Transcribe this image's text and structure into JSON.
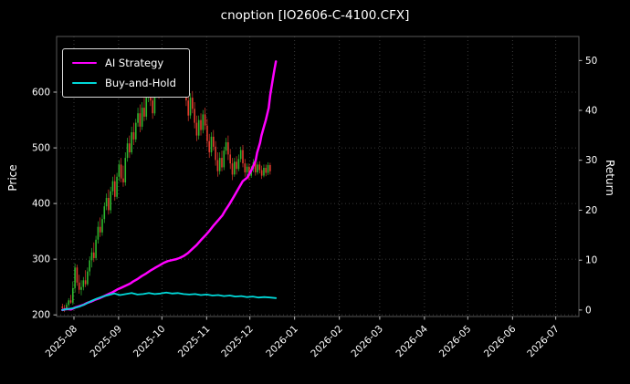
{
  "title": "cnoption [IO2606-C-4100.CFX]",
  "chart_data": {
    "type": "candlestick+line",
    "title": "cnoption [IO2606-C-4100.CFX]",
    "background": "#000000",
    "text_color": "#ffffff",
    "grid": {
      "on": true,
      "color": "#4a4a4a",
      "style": "dotted"
    },
    "legend_position": "upper-left",
    "x_axis": {
      "domain_days": [
        -4,
        358
      ],
      "tick_days": [
        8,
        39,
        69,
        100,
        130,
        161,
        192,
        220,
        251,
        281,
        312,
        342
      ],
      "tick_labels": [
        "2025-08",
        "2025-09",
        "2025-10",
        "2025-11",
        "2025-12",
        "2026-01",
        "2026-02",
        "2026-03",
        "2026-04",
        "2026-05",
        "2026-06",
        "2026-07"
      ]
    },
    "price_axis": {
      "label": "Price",
      "min": 197,
      "max": 700,
      "ticks": [
        200,
        300,
        400,
        500,
        600
      ]
    },
    "return_axis": {
      "label": "Return",
      "min": -1.3,
      "max": 54.8,
      "ticks": [
        0,
        10,
        20,
        30,
        40,
        50
      ]
    },
    "candles": {
      "start_day": 0,
      "end_day": 144,
      "up_color": "#2eb82e",
      "down_color": "#e23b2e",
      "ohlc": [
        [
          215,
          220,
          207,
          212
        ],
        [
          212,
          218,
          205,
          210
        ],
        [
          210,
          222,
          208,
          218
        ],
        [
          218,
          230,
          214,
          226
        ],
        [
          226,
          236,
          220,
          222
        ],
        [
          222,
          260,
          218,
          248
        ],
        [
          248,
          292,
          240,
          285
        ],
        [
          285,
          290,
          252,
          258
        ],
        [
          258,
          272,
          238,
          245
        ],
        [
          245,
          262,
          235,
          250
        ],
        [
          250,
          268,
          244,
          262
        ],
        [
          262,
          280,
          250,
          255
        ],
        [
          255,
          285,
          252,
          278
        ],
        [
          278,
          305,
          270,
          298
        ],
        [
          298,
          320,
          285,
          312
        ],
        [
          312,
          330,
          295,
          302
        ],
        [
          302,
          342,
          298,
          335
        ],
        [
          335,
          368,
          328,
          358
        ],
        [
          358,
          375,
          340,
          348
        ],
        [
          348,
          380,
          342,
          372
        ],
        [
          372,
          402,
          365,
          395
        ],
        [
          395,
          418,
          388,
          410
        ],
        [
          410,
          425,
          380,
          388
        ],
        [
          388,
          430,
          382,
          422
        ],
        [
          422,
          448,
          415,
          440
        ],
        [
          440,
          452,
          405,
          412
        ],
        [
          412,
          455,
          408,
          448
        ],
        [
          448,
          478,
          440,
          470
        ],
        [
          470,
          482,
          438,
          445
        ],
        [
          445,
          468,
          430,
          438
        ],
        [
          438,
          492,
          432,
          482
        ],
        [
          482,
          518,
          475,
          508
        ],
        [
          508,
          522,
          482,
          492
        ],
        [
          492,
          538,
          488,
          528
        ],
        [
          528,
          545,
          505,
          515
        ],
        [
          515,
          552,
          510,
          545
        ],
        [
          545,
          572,
          538,
          562
        ],
        [
          562,
          578,
          528,
          538
        ],
        [
          538,
          582,
          532,
          572
        ],
        [
          572,
          590,
          548,
          556
        ],
        [
          556,
          598,
          550,
          590
        ],
        [
          590,
          618,
          582,
          608
        ],
        [
          608,
          622,
          575,
          585
        ],
        [
          585,
          605,
          552,
          562
        ],
        [
          562,
          608,
          558,
          598
        ],
        [
          598,
          632,
          590,
          622
        ],
        [
          622,
          638,
          588,
          598
        ],
        [
          598,
          642,
          592,
          632
        ],
        [
          632,
          648,
          605,
          615
        ],
        [
          615,
          650,
          608,
          640
        ],
        [
          640,
          662,
          632,
          655
        ],
        [
          655,
          668,
          625,
          635
        ],
        [
          635,
          668,
          628,
          660
        ],
        [
          660,
          672,
          638,
          648
        ],
        [
          648,
          673,
          642,
          668
        ],
        [
          668,
          671,
          635,
          645
        ],
        [
          645,
          655,
          612,
          622
        ],
        [
          622,
          640,
          592,
          600
        ],
        [
          600,
          628,
          595,
          618
        ],
        [
          618,
          625,
          575,
          585
        ],
        [
          585,
          595,
          548,
          558
        ],
        [
          558,
          598,
          552,
          590
        ],
        [
          590,
          602,
          562,
          570
        ],
        [
          570,
          582,
          535,
          545
        ],
        [
          545,
          558,
          512,
          522
        ],
        [
          522,
          558,
          515,
          550
        ],
        [
          550,
          562,
          522,
          532
        ],
        [
          532,
          568,
          526,
          560
        ],
        [
          560,
          572,
          532,
          540
        ],
        [
          540,
          552,
          502,
          512
        ],
        [
          512,
          525,
          482,
          492
        ],
        [
          492,
          528,
          485,
          520
        ],
        [
          520,
          532,
          495,
          502
        ],
        [
          502,
          512,
          468,
          478
        ],
        [
          478,
          492,
          448,
          458
        ],
        [
          458,
          492,
          452,
          482
        ],
        [
          482,
          495,
          458,
          465
        ],
        [
          465,
          502,
          460,
          495
        ],
        [
          495,
          518,
          488,
          510
        ],
        [
          510,
          522,
          478,
          488
        ],
        [
          488,
          498,
          462,
          472
        ],
        [
          472,
          482,
          442,
          452
        ],
        [
          452,
          482,
          448,
          475
        ],
        [
          475,
          485,
          452,
          462
        ],
        [
          462,
          488,
          458,
          480
        ],
        [
          480,
          502,
          474,
          496
        ],
        [
          496,
          505,
          465,
          472
        ],
        [
          472,
          480,
          448,
          456
        ],
        [
          456,
          472,
          450,
          466
        ],
        [
          466,
          472,
          442,
          450
        ],
        [
          450,
          468,
          446,
          462
        ],
        [
          462,
          480,
          456,
          474
        ],
        [
          474,
          479,
          450,
          456
        ],
        [
          456,
          475,
          452,
          470
        ],
        [
          470,
          476,
          454,
          460
        ],
        [
          460,
          468,
          444,
          450
        ],
        [
          450,
          470,
          447,
          464
        ],
        [
          464,
          470,
          449,
          455
        ],
        [
          455,
          474,
          451,
          469
        ],
        [
          469,
          473,
          452,
          458
        ]
      ]
    },
    "series": [
      {
        "name": "AI Strategy",
        "color": "#ff00ff",
        "axis": "return",
        "points": [
          [
            0,
            0
          ],
          [
            3,
            0.2
          ],
          [
            6,
            0.1
          ],
          [
            9,
            0.5
          ],
          [
            12,
            0.8
          ],
          [
            15,
            1.1
          ],
          [
            17,
            1.4
          ],
          [
            20,
            1.7
          ],
          [
            23,
            2.1
          ],
          [
            26,
            2.4
          ],
          [
            29,
            2.8
          ],
          [
            32,
            3.2
          ],
          [
            35,
            3.6
          ],
          [
            38,
            4.1
          ],
          [
            41,
            4.5
          ],
          [
            44,
            4.9
          ],
          [
            47,
            5.3
          ],
          [
            49,
            5.7
          ],
          [
            52,
            6.2
          ],
          [
            55,
            6.8
          ],
          [
            58,
            7.3
          ],
          [
            61,
            7.9
          ],
          [
            64,
            8.4
          ],
          [
            67,
            8.9
          ],
          [
            70,
            9.4
          ],
          [
            73,
            9.8
          ],
          [
            76,
            10.0
          ],
          [
            79,
            10.2
          ],
          [
            81,
            10.4
          ],
          [
            84,
            10.8
          ],
          [
            87,
            11.4
          ],
          [
            90,
            12.2
          ],
          [
            93,
            13.0
          ],
          [
            96,
            14.0
          ],
          [
            99,
            14.9
          ],
          [
            102,
            15.9
          ],
          [
            105,
            17.0
          ],
          [
            108,
            18.0
          ],
          [
            111,
            19.0
          ],
          [
            113,
            20.0
          ],
          [
            116,
            21.3
          ],
          [
            119,
            22.8
          ],
          [
            122,
            24.3
          ],
          [
            125,
            25.8
          ],
          [
            128,
            26.5
          ],
          [
            131,
            28.0
          ],
          [
            134,
            30.0
          ],
          [
            135,
            31.5
          ],
          [
            137,
            33.5
          ],
          [
            138,
            35.0
          ],
          [
            140,
            37.0
          ],
          [
            141,
            38.0
          ],
          [
            143,
            40.5
          ],
          [
            144,
            43.0
          ],
          [
            146,
            46.5
          ],
          [
            147,
            48.2
          ],
          [
            148,
            49.8
          ]
        ]
      },
      {
        "name": "Buy-and-Hold",
        "color": "#00d9d9",
        "axis": "return",
        "points": [
          [
            0,
            0
          ],
          [
            4,
            0.2
          ],
          [
            8,
            0.4
          ],
          [
            12,
            0.7
          ],
          [
            16,
            1.2
          ],
          [
            20,
            1.8
          ],
          [
            24,
            2.3
          ],
          [
            28,
            2.7
          ],
          [
            32,
            3.0
          ],
          [
            36,
            3.3
          ],
          [
            40,
            3.0
          ],
          [
            44,
            3.2
          ],
          [
            48,
            3.4
          ],
          [
            52,
            3.1
          ],
          [
            56,
            3.2
          ],
          [
            60,
            3.4
          ],
          [
            64,
            3.2
          ],
          [
            68,
            3.3
          ],
          [
            72,
            3.5
          ],
          [
            76,
            3.3
          ],
          [
            80,
            3.4
          ],
          [
            84,
            3.2
          ],
          [
            88,
            3.1
          ],
          [
            92,
            3.2
          ],
          [
            96,
            3.0
          ],
          [
            100,
            3.1
          ],
          [
            104,
            2.9
          ],
          [
            108,
            3.0
          ],
          [
            112,
            2.8
          ],
          [
            116,
            2.9
          ],
          [
            120,
            2.7
          ],
          [
            124,
            2.8
          ],
          [
            128,
            2.6
          ],
          [
            132,
            2.7
          ],
          [
            136,
            2.5
          ],
          [
            140,
            2.6
          ],
          [
            144,
            2.5
          ],
          [
            148,
            2.4
          ]
        ]
      }
    ]
  }
}
